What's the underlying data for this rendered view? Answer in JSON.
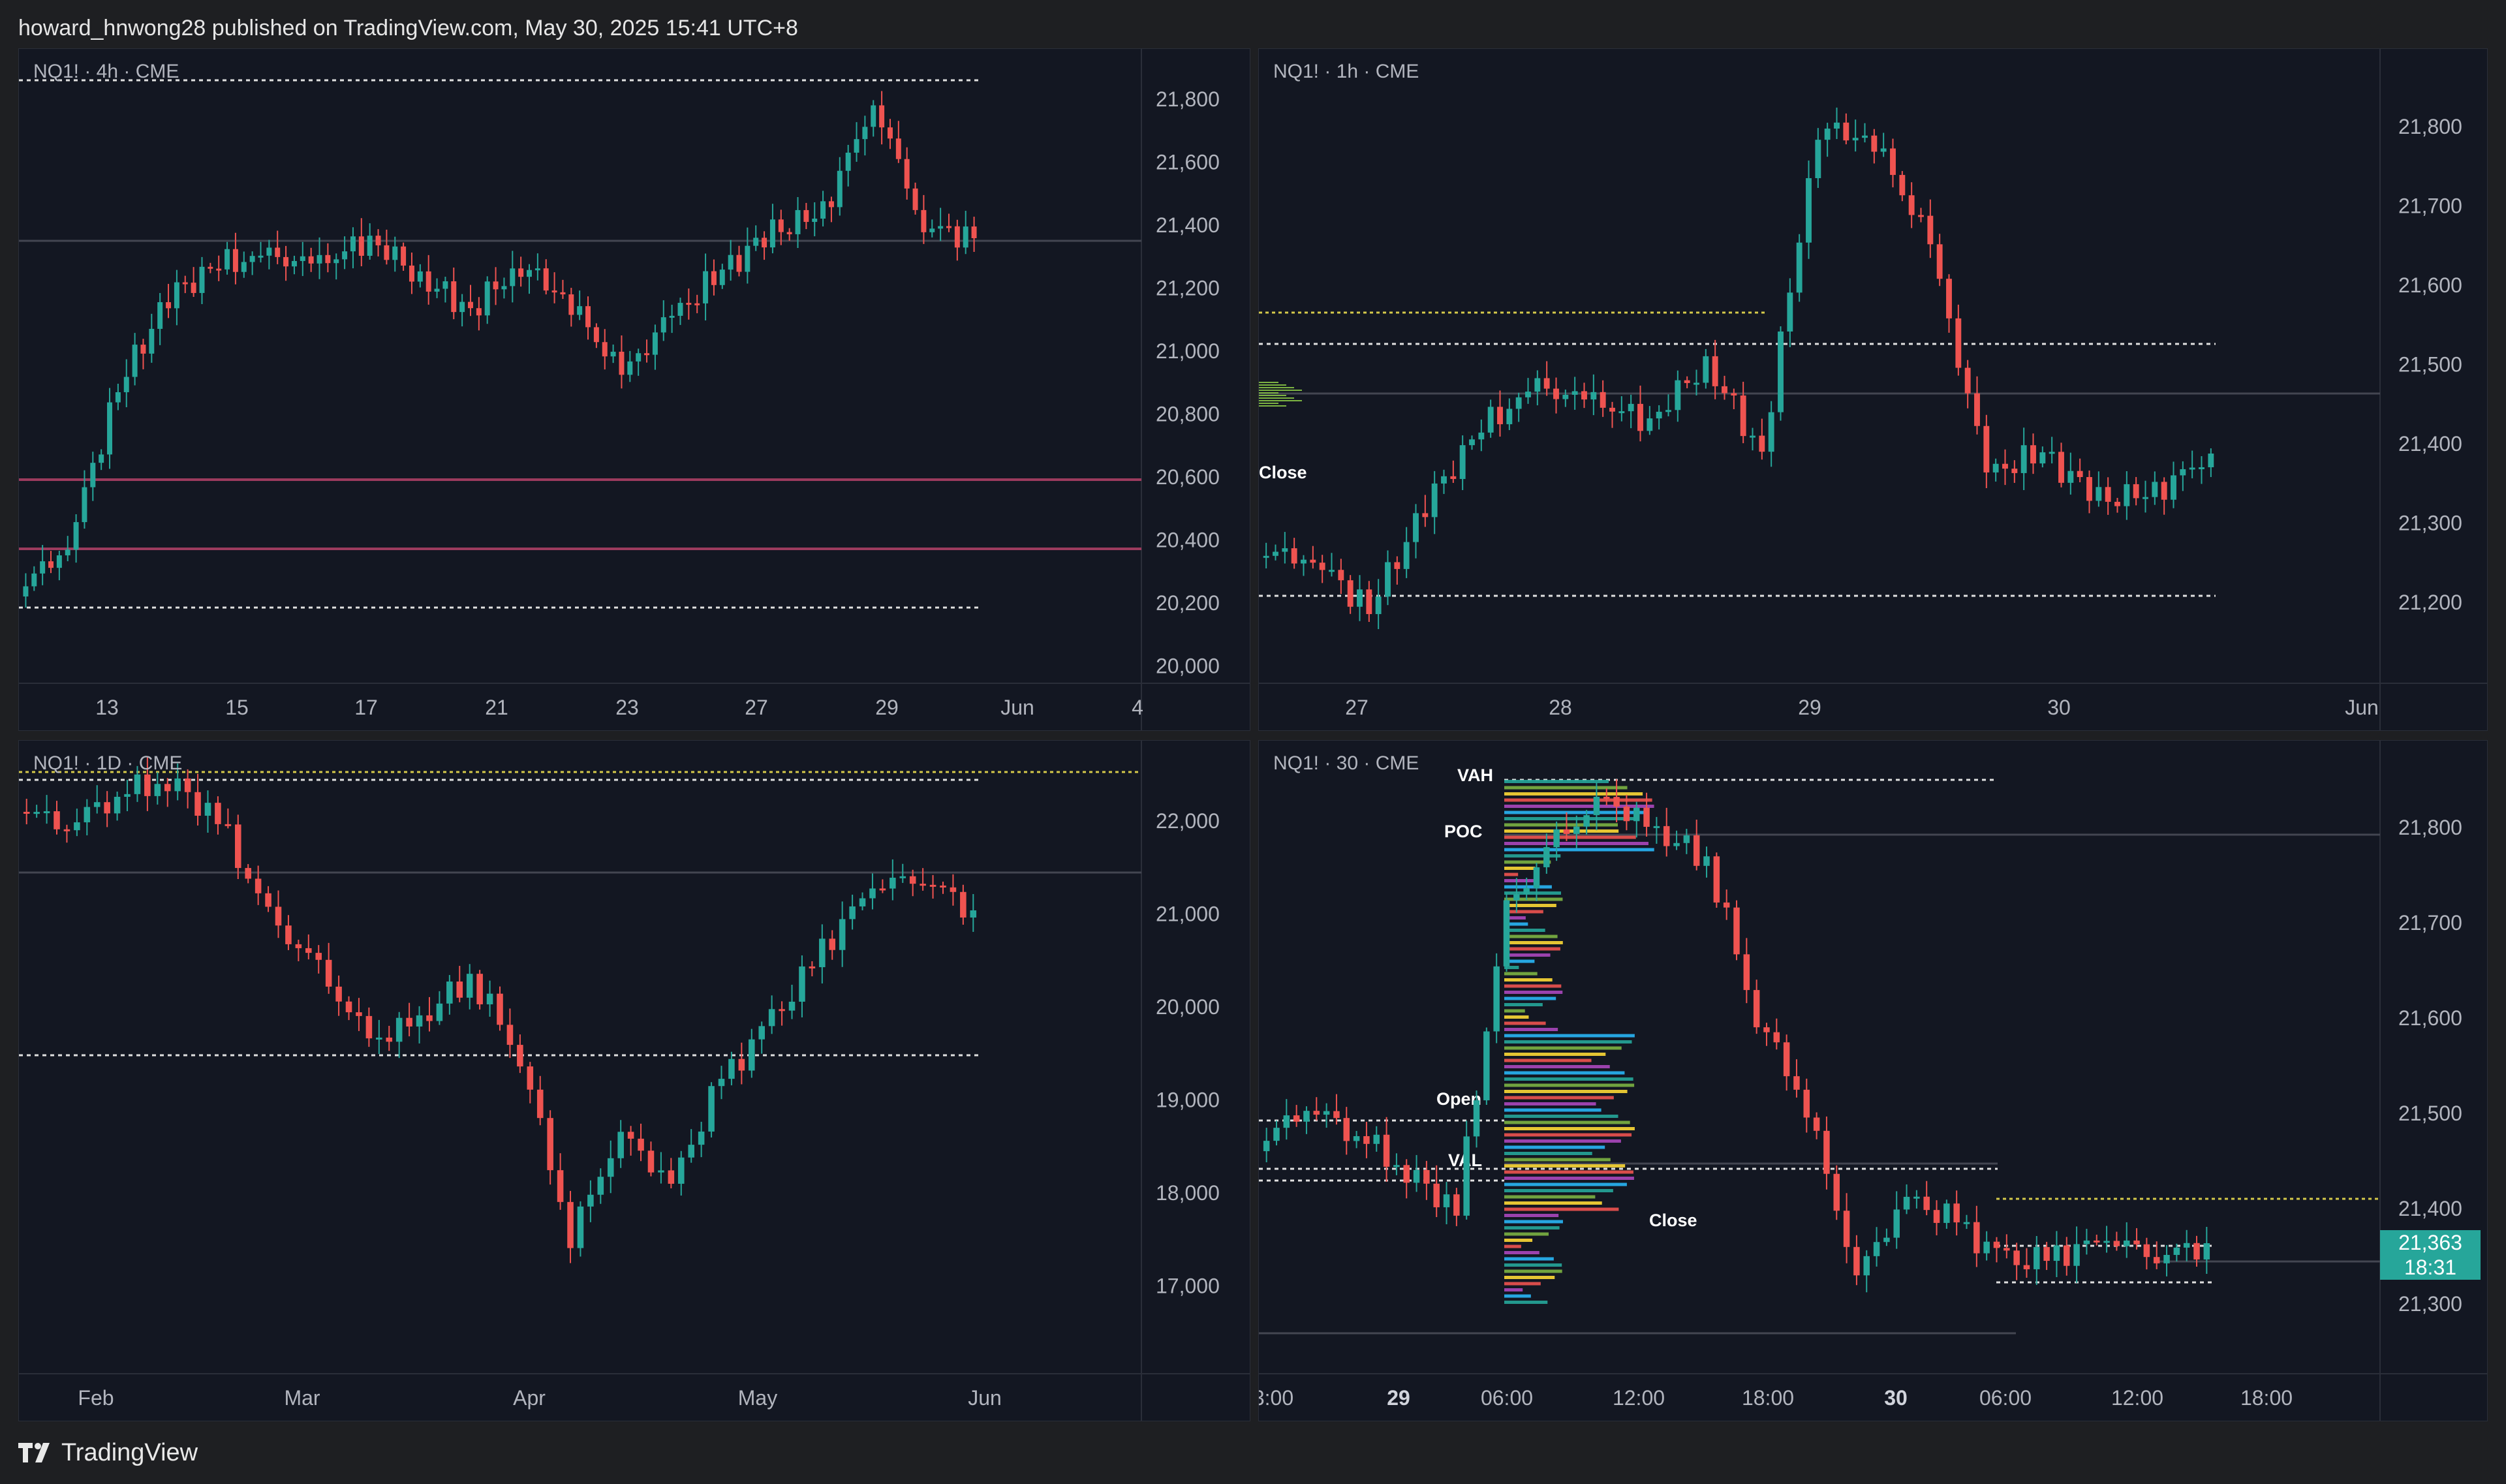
{
  "header": {
    "text": "howard_hnwong28 published on TradingView.com, May 30, 2025 15:41 UTC+8"
  },
  "footer": {
    "brand": "TradingView",
    "logo_icon": "tradingview-logo-icon"
  },
  "colors": {
    "background": "#131722",
    "up": "#26a69a",
    "down": "#ef5350",
    "level_line": "#9c3b5e",
    "yellow_dotted": "#d4c94a"
  },
  "panels": {
    "p4h": {
      "legend": "NQ1! · 4h · CME",
      "price_ticks": [
        "21,800",
        "21,600",
        "21,400",
        "21,200",
        "21,000",
        "20,800",
        "20,600",
        "20,400",
        "20,200",
        "20,000"
      ],
      "time_ticks": [
        "13",
        "15",
        "17",
        "21",
        "23",
        "27",
        "29",
        "Jun",
        "4"
      ]
    },
    "p1h": {
      "legend": "NQ1! · 1h · CME",
      "price_ticks": [
        "21,800",
        "21,700",
        "21,600",
        "21,500",
        "21,400",
        "21,300",
        "21,200"
      ],
      "time_ticks": [
        "27",
        "28",
        "29",
        "30",
        "Jun"
      ],
      "labels": {
        "close": "Close"
      }
    },
    "p1d": {
      "legend": "NQ1! · 1D · CME",
      "price_ticks": [
        "22,000",
        "21,000",
        "20,000",
        "19,000",
        "18,000",
        "17,000"
      ],
      "time_ticks": [
        "Feb",
        "Mar",
        "Apr",
        "May",
        "Jun"
      ]
    },
    "p30": {
      "legend": "NQ1! · 30 · CME",
      "price_ticks": [
        "21,800",
        "21,700",
        "21,600",
        "21,500",
        "21,400",
        "21,300"
      ],
      "time_ticks": [
        "3:00",
        "29",
        "06:00",
        "12:00",
        "18:00",
        "30",
        "06:00",
        "12:00",
        "18:00"
      ],
      "labels": {
        "vah": "VAH",
        "poc": "POC",
        "open": "Open",
        "val": "VAL",
        "close": "Close"
      },
      "last_price": "21,363",
      "countdown": "18:31"
    }
  }
}
